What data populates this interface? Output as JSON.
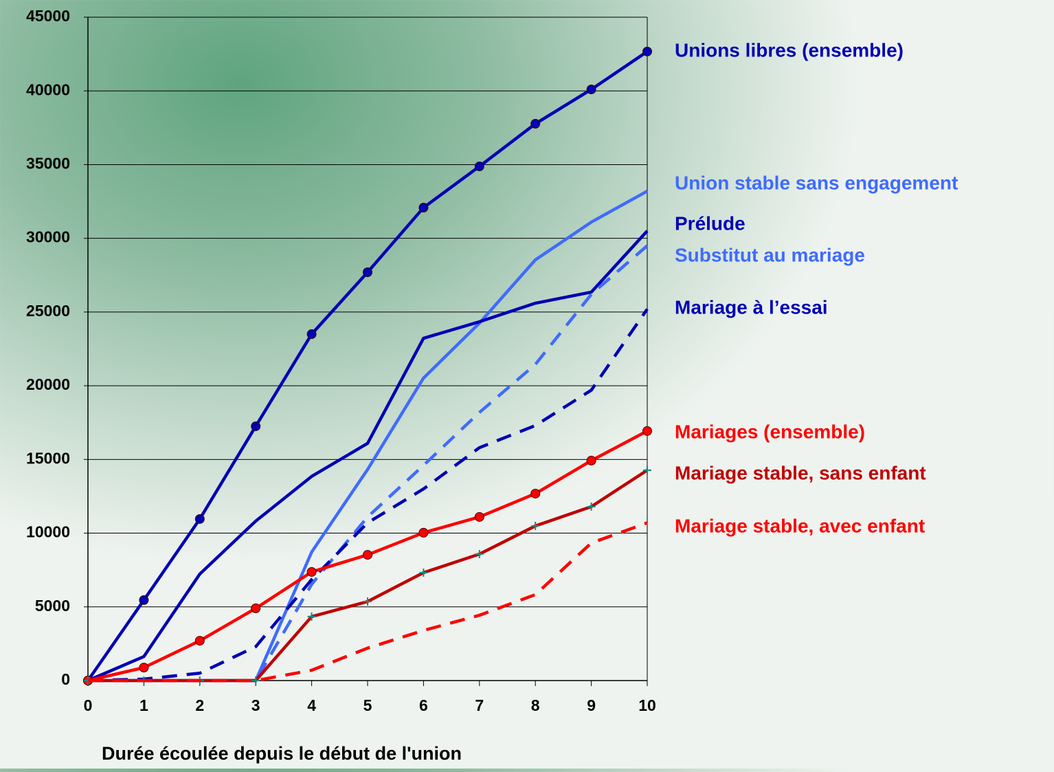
{
  "chart_data": {
    "type": "line",
    "x_label": "Durée écoulée depuis le début de l'union",
    "x": [
      0,
      1,
      2,
      3,
      4,
      5,
      6,
      7,
      8,
      9,
      10
    ],
    "xlim": [
      0,
      10
    ],
    "xticks": [
      0,
      1,
      2,
      3,
      4,
      5,
      6,
      7,
      8,
      9,
      10
    ],
    "ylim": [
      0,
      45000
    ],
    "yticks": [
      0,
      5000,
      10000,
      15000,
      20000,
      25000,
      30000,
      35000,
      40000,
      45000
    ],
    "grid": true,
    "series": [
      {
        "name": "Unions libres (ensemble)",
        "color": "#0000b4",
        "dashed": false,
        "marker": "circle",
        "values": [
          0,
          5460,
          10960,
          17250,
          23500,
          27700,
          32080,
          34880,
          37770,
          40100,
          42670
        ]
      },
      {
        "name": "Union stable sans engagement",
        "color": "#3f6bff",
        "dashed": false,
        "marker": null,
        "values": [
          0,
          0,
          0,
          0,
          8720,
          14320,
          20520,
          24250,
          28540,
          31100,
          33200
        ]
      },
      {
        "name": "Prélude",
        "color": "#0000b4",
        "dashed": false,
        "marker": null,
        "values": [
          0,
          1630,
          7230,
          10820,
          13850,
          16090,
          23220,
          24340,
          25600,
          26350,
          30500
        ]
      },
      {
        "name": "Substitut au mariage",
        "color": "#3f6bff",
        "dashed": true,
        "marker": null,
        "values": [
          0,
          0,
          0,
          0,
          6530,
          11100,
          14600,
          18190,
          21450,
          26200,
          29500
        ]
      },
      {
        "name": "Mariage à l’essai",
        "color": "#0000b4",
        "dashed": true,
        "marker": null,
        "values": [
          0,
          100,
          500,
          2300,
          6850,
          10700,
          13000,
          15800,
          17300,
          19700,
          25200
        ]
      },
      {
        "name": "Mariages (ensemble)",
        "color": "#ff0000",
        "dashed": false,
        "marker": "circle",
        "values": [
          0,
          880,
          2700,
          4900,
          7370,
          8530,
          10030,
          11100,
          12680,
          14920,
          16930
        ]
      },
      {
        "name": "Mariage stable, sans enfant",
        "color": "#c00000",
        "dashed": false,
        "marker": "plus",
        "marker_color": "#1a8a80",
        "values": [
          0,
          0,
          0,
          0,
          4340,
          5360,
          7320,
          8580,
          10490,
          11800,
          14270
        ]
      },
      {
        "name": "Mariage stable, avec enfant",
        "color": "#ff0000",
        "dashed": true,
        "marker": null,
        "values": [
          0,
          0,
          0,
          0,
          700,
          2200,
          3400,
          4430,
          5830,
          9330,
          10700
        ]
      }
    ]
  }
}
